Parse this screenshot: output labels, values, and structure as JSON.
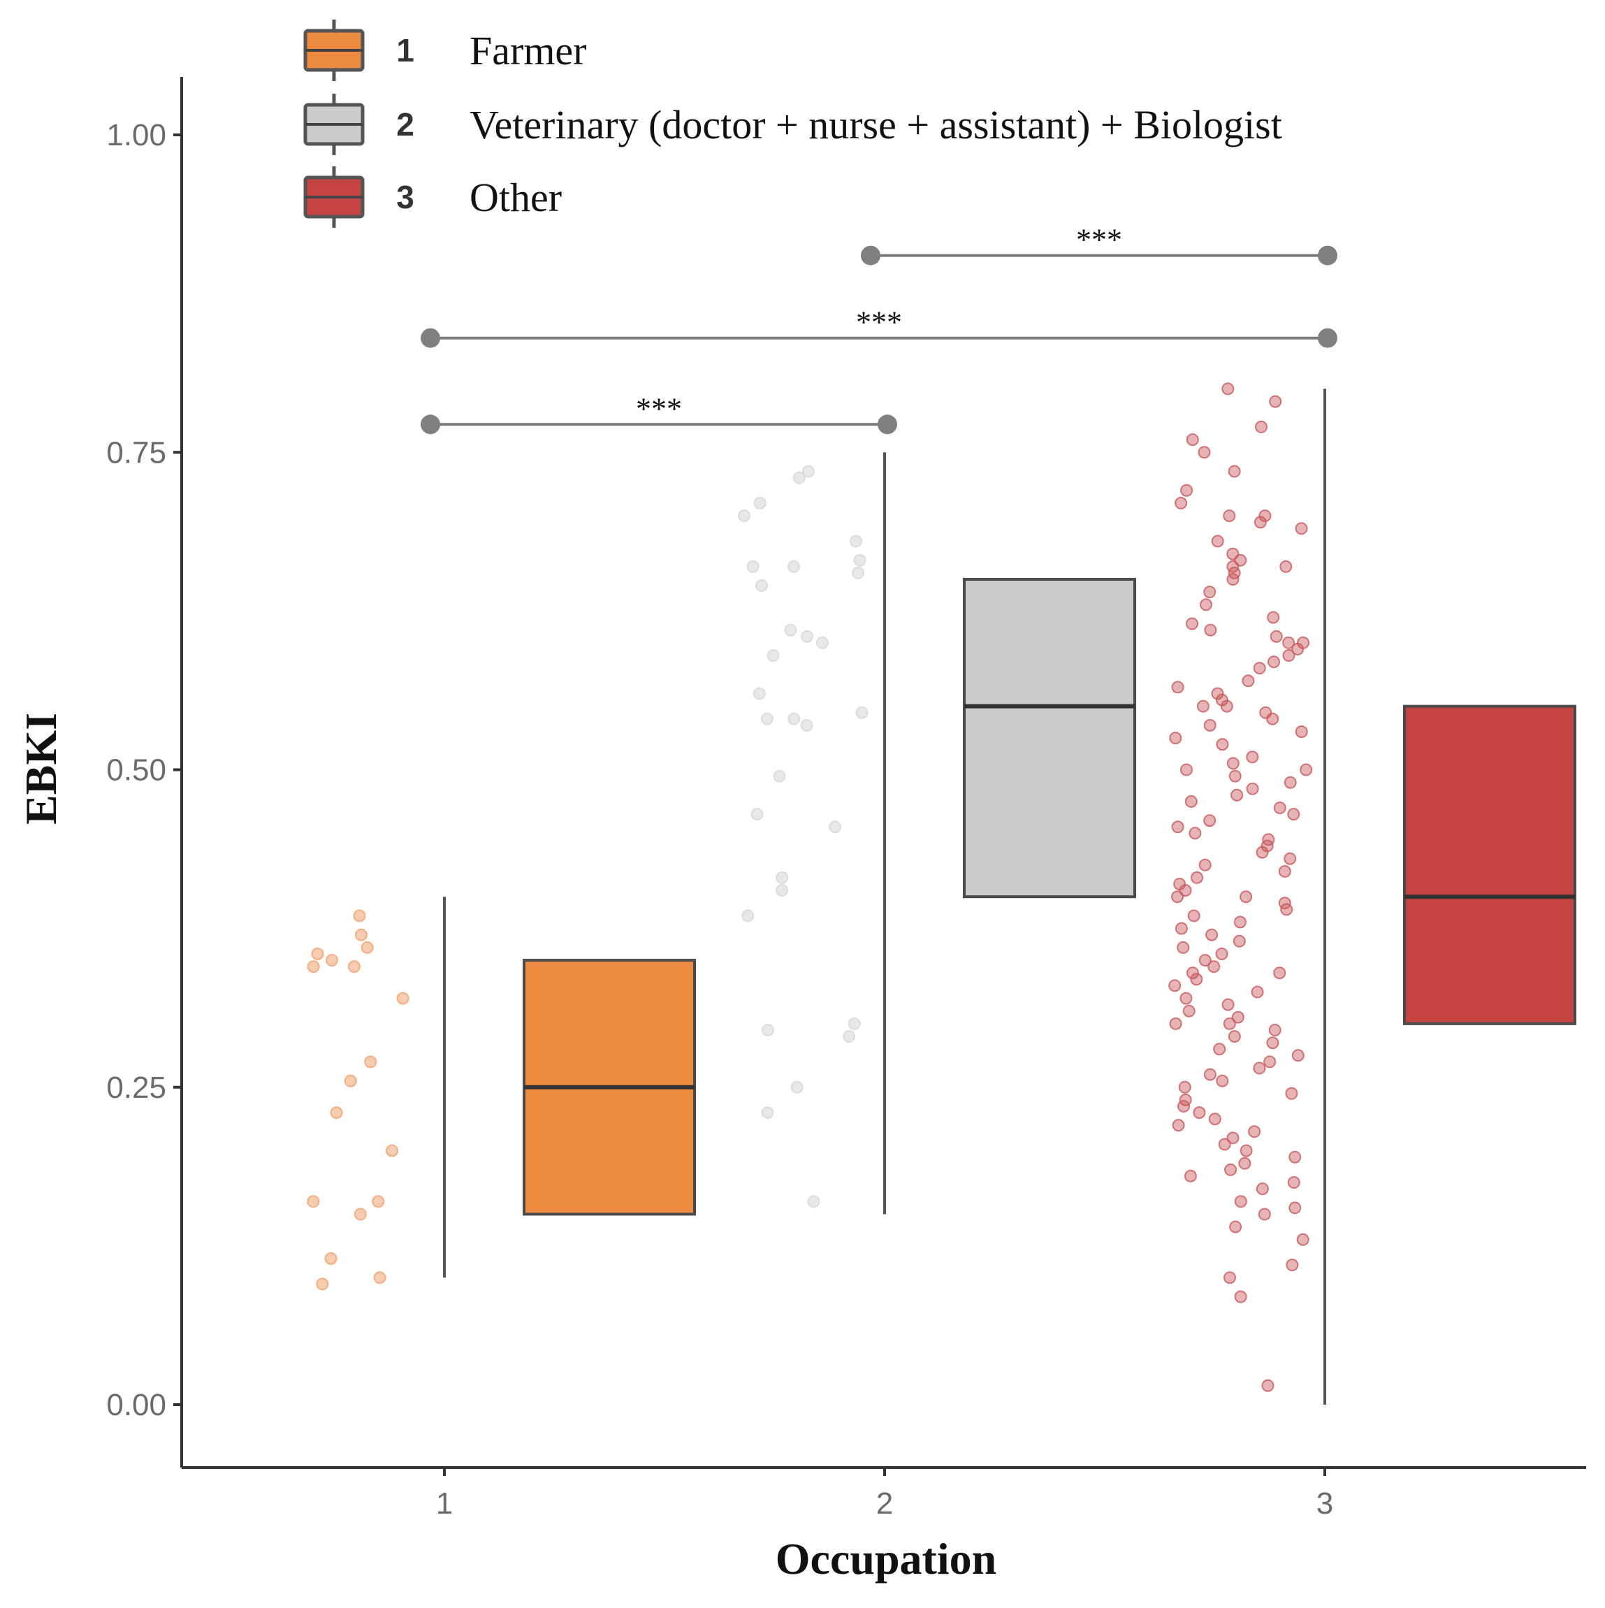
{
  "chart_data": {
    "type": "box",
    "title": "",
    "xlabel": "Occupation",
    "ylabel": "EBKI",
    "ylim": [
      -0.05,
      1.05
    ],
    "yticks": [
      "0.00",
      "0.25",
      "0.50",
      "0.75",
      "1.00"
    ],
    "ytick_values": [
      0,
      0.25,
      0.5,
      0.75,
      1.0
    ],
    "categories": [
      "1",
      "2",
      "3"
    ],
    "colors": [
      "#ec8a3f",
      "#cccccc",
      "#c44444"
    ],
    "point_colors": [
      "#f0a070",
      "#d6d6d6",
      "#c8585a"
    ],
    "legend": [
      {
        "key": "1",
        "label": "Farmer",
        "color": "#ec8a3f"
      },
      {
        "key": "2",
        "label": "Veterinary (doctor + nurse + assistant) + Biologist",
        "color": "#cccccc"
      },
      {
        "key": "3",
        "label": "Other",
        "color": "#c44444"
      }
    ],
    "boxes": [
      {
        "category": "1",
        "min": 0.1,
        "q1": 0.15,
        "median": 0.25,
        "q3": 0.35,
        "max": 0.4
      },
      {
        "category": "2",
        "min": 0.15,
        "q1": 0.4,
        "median": 0.55,
        "q3": 0.65,
        "max": 0.75
      },
      {
        "category": "3",
        "min": 0.0,
        "q1": 0.3,
        "median": 0.4,
        "q3": 0.55,
        "max": 0.8
      }
    ],
    "points": [
      [
        0.385,
        0.36,
        0.355,
        0.35,
        0.345,
        0.37,
        0.345,
        0.32,
        0.27,
        0.255,
        0.23,
        0.2,
        0.16,
        0.16,
        0.15,
        0.115,
        0.1,
        0.095
      ],
      [
        0.735,
        0.73,
        0.71,
        0.7,
        0.68,
        0.665,
        0.66,
        0.66,
        0.655,
        0.645,
        0.61,
        0.605,
        0.6,
        0.59,
        0.56,
        0.545,
        0.54,
        0.54,
        0.535,
        0.495,
        0.465,
        0.455,
        0.415,
        0.405,
        0.385,
        0.3,
        0.295,
        0.29,
        0.25,
        0.23,
        0.16
      ],
      [
        0.8,
        0.79,
        0.77,
        0.76,
        0.75,
        0.735,
        0.72,
        0.71,
        0.7,
        0.7,
        0.695,
        0.69,
        0.68,
        0.67,
        0.665,
        0.66,
        0.66,
        0.655,
        0.65,
        0.64,
        0.63,
        0.62,
        0.615,
        0.61,
        0.605,
        0.6,
        0.6,
        0.595,
        0.59,
        0.585,
        0.58,
        0.57,
        0.565,
        0.56,
        0.555,
        0.55,
        0.55,
        0.545,
        0.54,
        0.535,
        0.53,
        0.525,
        0.52,
        0.51,
        0.505,
        0.5,
        0.5,
        0.495,
        0.49,
        0.485,
        0.48,
        0.475,
        0.47,
        0.465,
        0.46,
        0.455,
        0.45,
        0.445,
        0.44,
        0.435,
        0.43,
        0.425,
        0.42,
        0.415,
        0.41,
        0.405,
        0.4,
        0.4,
        0.395,
        0.39,
        0.385,
        0.38,
        0.375,
        0.37,
        0.365,
        0.36,
        0.355,
        0.35,
        0.345,
        0.34,
        0.34,
        0.335,
        0.33,
        0.325,
        0.32,
        0.315,
        0.31,
        0.305,
        0.3,
        0.3,
        0.295,
        0.29,
        0.285,
        0.28,
        0.275,
        0.27,
        0.265,
        0.26,
        0.255,
        0.25,
        0.245,
        0.24,
        0.235,
        0.23,
        0.225,
        0.22,
        0.215,
        0.21,
        0.205,
        0.2,
        0.195,
        0.19,
        0.185,
        0.18,
        0.175,
        0.17,
        0.16,
        0.155,
        0.15,
        0.14,
        0.13,
        0.11,
        0.1,
        0.085,
        0.015
      ]
    ],
    "significance": [
      {
        "from": "2",
        "to": "3",
        "label": "***",
        "y": 0.905
      },
      {
        "from": "1",
        "to": "3",
        "label": "***",
        "y": 0.84
      },
      {
        "from": "1",
        "to": "2",
        "label": "***",
        "y": 0.772
      }
    ]
  }
}
